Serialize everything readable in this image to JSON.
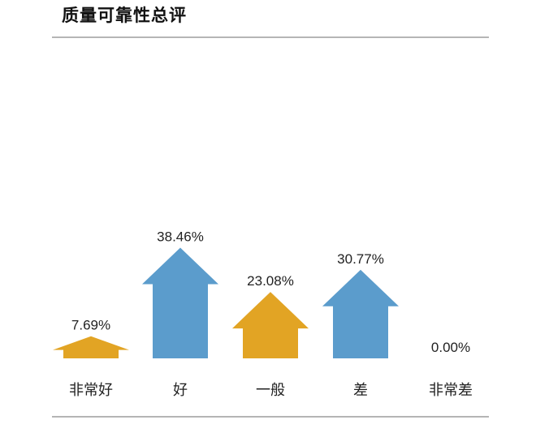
{
  "title": "质量可靠性总评",
  "chart_data": {
    "type": "bar",
    "title": "质量可靠性总评",
    "categories": [
      "非常好",
      "好",
      "一般",
      "差",
      "非常差"
    ],
    "values": [
      7.69,
      38.46,
      23.08,
      30.77,
      0.0
    ],
    "value_labels": [
      "7.69%",
      "38.46%",
      "23.08%",
      "30.77%",
      "0.00%"
    ],
    "colors": [
      "#e2a424",
      "#5b9ccc",
      "#e2a424",
      "#5b9ccc",
      "#e2a424"
    ],
    "bar_style": "upward-arrow",
    "grid": false,
    "legend": "none"
  }
}
